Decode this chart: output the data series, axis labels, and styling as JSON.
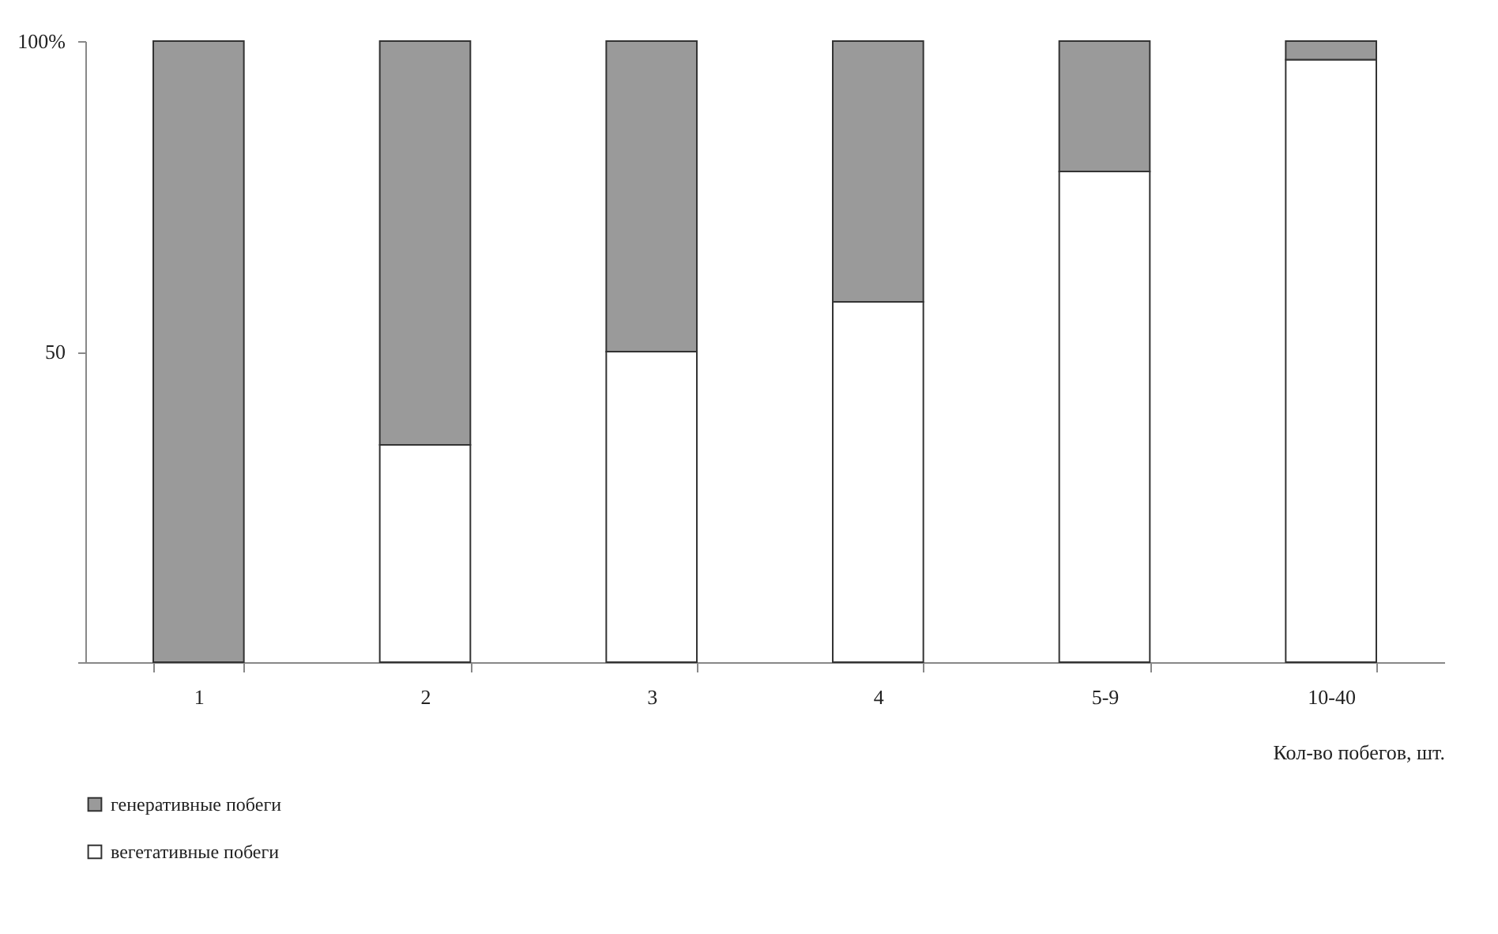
{
  "chart_data": {
    "type": "bar",
    "stacked": true,
    "xlabel": "Кол-во побегов, шт.",
    "categories": [
      "1",
      "2",
      "3",
      "4",
      "5-9",
      "10-40"
    ],
    "series": [
      {
        "name": "вегетативные побеги",
        "color": "#ffffff",
        "values": [
          0,
          35,
          50,
          58,
          79,
          97
        ]
      },
      {
        "name": "генеративные побеги",
        "color": "#9a9a9a",
        "values": [
          100,
          65,
          50,
          42,
          21,
          3
        ]
      }
    ],
    "ylim": [
      0,
      100
    ],
    "yticks": [
      {
        "value": 0,
        "label": null
      },
      50,
      {
        "value": 100,
        "label": "100%"
      }
    ],
    "grid": false,
    "legend": "bottom"
  }
}
